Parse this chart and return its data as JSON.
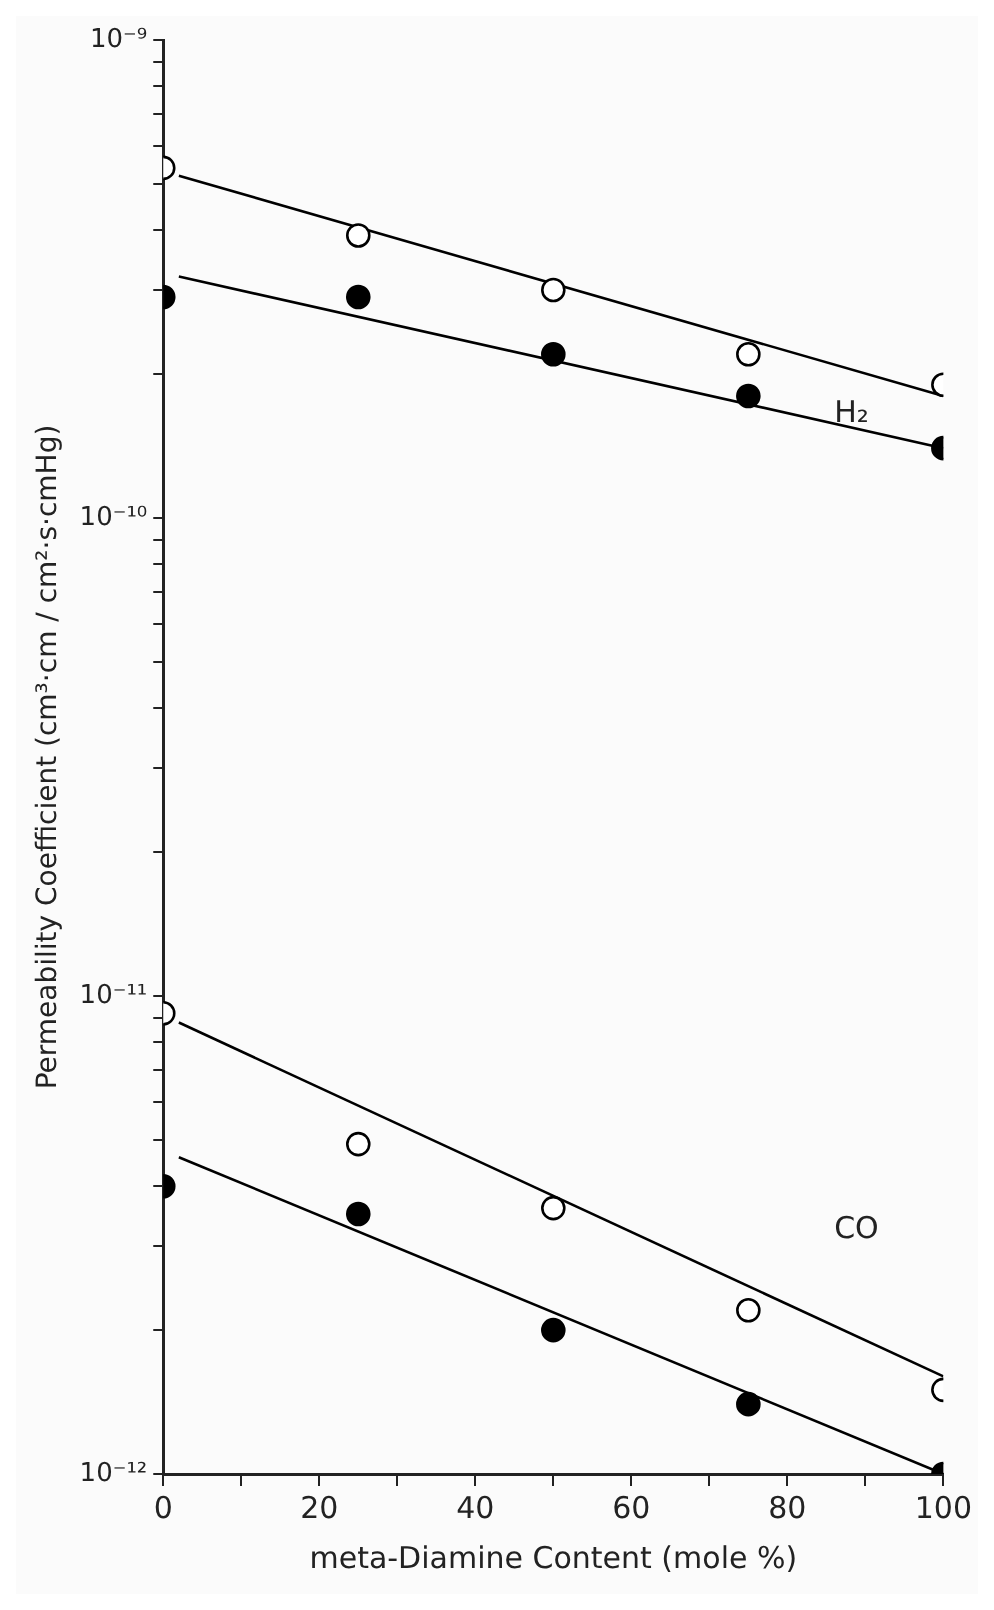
{
  "chart_data": {
    "type": "scatter",
    "xlabel": "meta-Diamine Content (mole %)",
    "ylabel": "Permeability Coefficient (cm³·cm / cm²·s·cmHg)",
    "log": "y",
    "marker": "circle",
    "xlim": [
      0,
      100
    ],
    "xticks": [
      0,
      {
        "value": 10,
        "label": null
      },
      20,
      {
        "value": 30,
        "label": null
      },
      40,
      {
        "value": 50,
        "label": null
      },
      60,
      {
        "value": 70,
        "label": null
      },
      80,
      {
        "value": 90,
        "label": null
      },
      100
    ],
    "ylim": [
      1e-12,
      1e-09
    ],
    "yticks": [
      {
        "value": 1e-12,
        "label": "10⁻¹²"
      },
      {
        "value": 2e-12,
        "label": null
      },
      {
        "value": 3e-12,
        "label": null
      },
      {
        "value": 4e-12,
        "label": null
      },
      {
        "value": 5e-12,
        "label": null
      },
      {
        "value": 6e-12,
        "label": null
      },
      {
        "value": 7e-12,
        "label": null
      },
      {
        "value": 8e-12,
        "label": null
      },
      {
        "value": 9e-12,
        "label": null
      },
      {
        "value": 1e-11,
        "label": "10⁻¹¹"
      },
      {
        "value": 2e-11,
        "label": null
      },
      {
        "value": 3e-11,
        "label": null
      },
      {
        "value": 4e-11,
        "label": null
      },
      {
        "value": 5e-11,
        "label": null
      },
      {
        "value": 6e-11,
        "label": null
      },
      {
        "value": 7e-11,
        "label": null
      },
      {
        "value": 8e-11,
        "label": null
      },
      {
        "value": 9e-11,
        "label": null
      },
      {
        "value": 1e-10,
        "label": "10⁻¹⁰"
      },
      {
        "value": 2e-10,
        "label": null
      },
      {
        "value": 3e-10,
        "label": null
      },
      {
        "value": 4e-10,
        "label": null
      },
      {
        "value": 5e-10,
        "label": null
      },
      {
        "value": 6e-10,
        "label": null
      },
      {
        "value": 7e-10,
        "label": null
      },
      {
        "value": 8e-10,
        "label": null
      },
      {
        "value": 9e-10,
        "label": null
      },
      {
        "value": 1e-09,
        "label": "10⁻⁹"
      }
    ],
    "series": [
      {
        "type": "scatter",
        "color": "#ffffff",
        "x": [
          0,
          25,
          50,
          75,
          100
        ],
        "values": [
          5.4e-10,
          3.9e-10,
          3e-10,
          2.2e-10,
          1.9e-10
        ]
      },
      {
        "type": "scatter",
        "color": "#000000",
        "x": [
          0,
          25,
          50,
          75,
          100
        ],
        "values": [
          2.9e-10,
          2.9e-10,
          2.2e-10,
          1.8e-10,
          1.4e-10
        ]
      },
      {
        "type": "scatter",
        "color": "#ffffff",
        "x": [
          0,
          25,
          50,
          75,
          100
        ],
        "values": [
          9.2e-12,
          4.9e-12,
          3.6e-12,
          2.2e-12,
          1.5e-12
        ]
      },
      {
        "type": "scatter",
        "color": "#000000",
        "x": [
          0,
          25,
          50,
          75,
          100
        ],
        "values": [
          4e-12,
          3.5e-12,
          2e-12,
          1.4e-12,
          1e-12
        ]
      },
      {
        "type": "line",
        "marker": "none",
        "color": "#000000",
        "x": [
          2,
          100
        ],
        "values": [
          5.2e-10,
          1.8e-10
        ]
      },
      {
        "type": "line",
        "marker": "none",
        "color": "#000000",
        "x": [
          2,
          100
        ],
        "values": [
          3.2e-10,
          1.4e-10
        ]
      },
      {
        "type": "line",
        "marker": "none",
        "color": "#000000",
        "x": [
          2,
          100
        ],
        "values": [
          8.8e-12,
          1.6e-12
        ]
      },
      {
        "type": "line",
        "marker": "none",
        "color": "#000000",
        "x": [
          2,
          100
        ],
        "values": [
          4.6e-12,
          1e-12
        ]
      }
    ],
    "annotations": [
      "H₂",
      "CO"
    ]
  }
}
